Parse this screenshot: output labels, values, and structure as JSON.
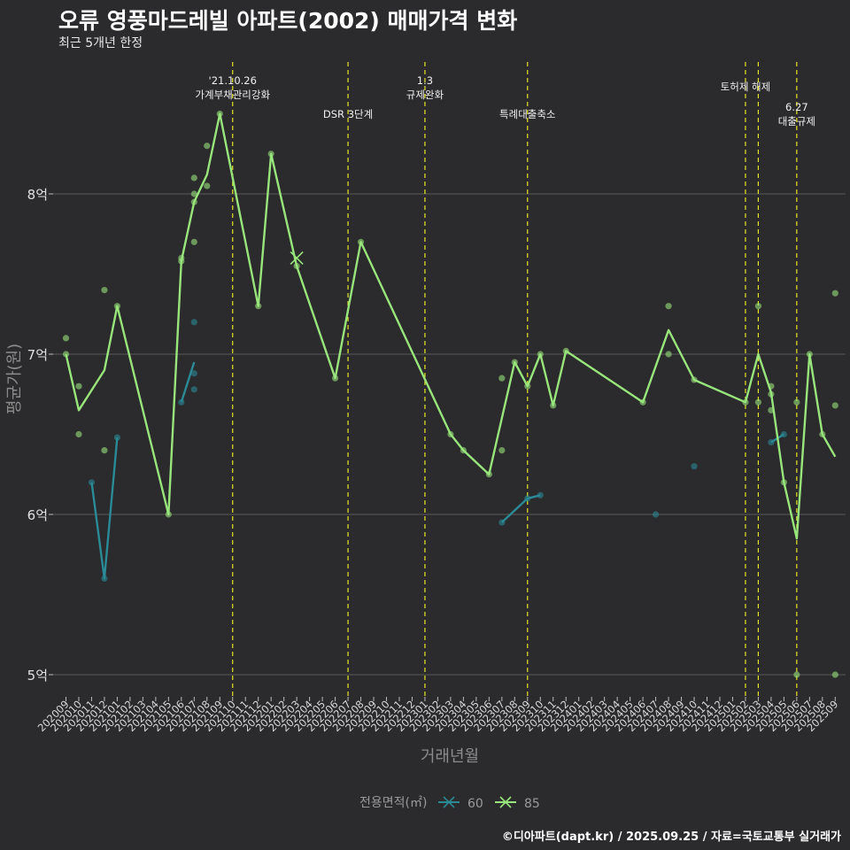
{
  "header": {
    "title": "오류 영풍마드레빌 아파트(2002) 매매가격 변화",
    "subtitle": "최근 5개년 한정"
  },
  "caption": "©디아파트(dapt.kr) / 2025.09.25 / 자료=국토교통부 실거래가",
  "colors": {
    "background": "#2b2a2c",
    "grid": "#6a6a6a",
    "series_60": "#2a8a96",
    "series_85": "#98e57c",
    "event_line": "#e6e627"
  },
  "chart_data": {
    "type": "line",
    "xlabel": "거래년월",
    "ylabel": "평균가(원)",
    "ylim": [
      4.85,
      8.95
    ],
    "yticks": [
      5,
      6,
      7,
      8
    ],
    "ytick_labels": [
      "5억",
      "6억",
      "7억",
      "8억"
    ],
    "categories": [
      "202009",
      "202010",
      "202011",
      "202012",
      "202101",
      "202102",
      "202103",
      "202104",
      "202105",
      "202106",
      "202107",
      "202108",
      "202109",
      "202110",
      "202111",
      "202112",
      "202201",
      "202202",
      "202203",
      "202204",
      "202205",
      "202206",
      "202207",
      "202208",
      "202209",
      "202210",
      "202211",
      "202212",
      "202301",
      "202302",
      "202303",
      "202304",
      "202305",
      "202306",
      "202307",
      "202308",
      "202309",
      "202310",
      "202311",
      "202312",
      "202401",
      "202402",
      "202403",
      "202404",
      "202405",
      "202406",
      "202407",
      "202408",
      "202409",
      "202410",
      "202411",
      "202412",
      "202501",
      "202502",
      "202503",
      "202504",
      "202505",
      "202506",
      "202507",
      "202508",
      "202509"
    ],
    "legend": {
      "title": "전용면적(㎡)",
      "entries": [
        "60",
        "85"
      ]
    },
    "series": [
      {
        "name": "60",
        "line": [
          {
            "x": "202011",
            "y": 6.2
          },
          {
            "x": "202012",
            "y": 5.6
          },
          {
            "x": "202101",
            "y": 6.48
          },
          {
            "x": "202106",
            "y": 6.7
          },
          {
            "x": "202107",
            "y": 6.95
          },
          {
            "x": "202307",
            "y": 5.95
          },
          {
            "x": "202309",
            "y": 6.1
          },
          {
            "x": "202310",
            "y": 6.12
          },
          {
            "x": "202504",
            "y": 6.45
          },
          {
            "x": "202505",
            "y": 6.5
          }
        ],
        "points": [
          {
            "x": "202011",
            "y": 6.2
          },
          {
            "x": "202012",
            "y": 5.6
          },
          {
            "x": "202101",
            "y": 6.48
          },
          {
            "x": "202106",
            "y": 6.7
          },
          {
            "x": "202107",
            "y": 7.2
          },
          {
            "x": "202107",
            "y": 6.88
          },
          {
            "x": "202107",
            "y": 6.78
          },
          {
            "x": "202307",
            "y": 5.95
          },
          {
            "x": "202309",
            "y": 6.1
          },
          {
            "x": "202310",
            "y": 6.12
          },
          {
            "x": "202407",
            "y": 6.0
          },
          {
            "x": "202410",
            "y": 6.3
          },
          {
            "x": "202504",
            "y": 6.45
          },
          {
            "x": "202505",
            "y": 6.5
          }
        ]
      },
      {
        "name": "85",
        "line": [
          {
            "x": "202009",
            "y": 7.0
          },
          {
            "x": "202010",
            "y": 6.65
          },
          {
            "x": "202012",
            "y": 6.9
          },
          {
            "x": "202101",
            "y": 7.3
          },
          {
            "x": "202105",
            "y": 6.0
          },
          {
            "x": "202106",
            "y": 7.58
          },
          {
            "x": "202107",
            "y": 7.95
          },
          {
            "x": "202108",
            "y": 8.12
          },
          {
            "x": "202109",
            "y": 8.5
          },
          {
            "x": "202112",
            "y": 7.3
          },
          {
            "x": "202201",
            "y": 8.25
          },
          {
            "x": "202203",
            "y": 7.55
          },
          {
            "x": "202206",
            "y": 6.85
          },
          {
            "x": "202208",
            "y": 7.7
          },
          {
            "x": "202303",
            "y": 6.5
          },
          {
            "x": "202304",
            "y": 6.4
          },
          {
            "x": "202306",
            "y": 6.25
          },
          {
            "x": "202308",
            "y": 6.95
          },
          {
            "x": "202309",
            "y": 6.8
          },
          {
            "x": "202310",
            "y": 7.0
          },
          {
            "x": "202311",
            "y": 6.68
          },
          {
            "x": "202312",
            "y": 7.02
          },
          {
            "x": "202406",
            "y": 6.7
          },
          {
            "x": "202408",
            "y": 7.15
          },
          {
            "x": "202410",
            "y": 6.84
          },
          {
            "x": "202502",
            "y": 6.7
          },
          {
            "x": "202503",
            "y": 7.0
          },
          {
            "x": "202504",
            "y": 6.76
          },
          {
            "x": "202505",
            "y": 6.2
          },
          {
            "x": "202506",
            "y": 5.85
          },
          {
            "x": "202507",
            "y": 7.0
          },
          {
            "x": "202508",
            "y": 6.5
          },
          {
            "x": "202509",
            "y": 6.36
          }
        ],
        "points": [
          {
            "x": "202009",
            "y": 7.1
          },
          {
            "x": "202009",
            "y": 7.0
          },
          {
            "x": "202010",
            "y": 6.8
          },
          {
            "x": "202010",
            "y": 6.5
          },
          {
            "x": "202012",
            "y": 7.4
          },
          {
            "x": "202012",
            "y": 6.4
          },
          {
            "x": "202101",
            "y": 7.3
          },
          {
            "x": "202105",
            "y": 6.0
          },
          {
            "x": "202106",
            "y": 7.6
          },
          {
            "x": "202106",
            "y": 7.58
          },
          {
            "x": "202107",
            "y": 8.1
          },
          {
            "x": "202107",
            "y": 8.0
          },
          {
            "x": "202107",
            "y": 7.95
          },
          {
            "x": "202107",
            "y": 7.7
          },
          {
            "x": "202108",
            "y": 8.3
          },
          {
            "x": "202108",
            "y": 8.05
          },
          {
            "x": "202109",
            "y": 8.5
          },
          {
            "x": "202112",
            "y": 7.3
          },
          {
            "x": "202201",
            "y": 8.25
          },
          {
            "x": "202203",
            "y": 7.55
          },
          {
            "x": "202206",
            "y": 6.85
          },
          {
            "x": "202208",
            "y": 7.7
          },
          {
            "x": "202303",
            "y": 6.5
          },
          {
            "x": "202304",
            "y": 6.4
          },
          {
            "x": "202306",
            "y": 6.25
          },
          {
            "x": "202307",
            "y": 6.85
          },
          {
            "x": "202307",
            "y": 6.4
          },
          {
            "x": "202308",
            "y": 6.95
          },
          {
            "x": "202309",
            "y": 6.8
          },
          {
            "x": "202310",
            "y": 7.0
          },
          {
            "x": "202311",
            "y": 6.68
          },
          {
            "x": "202312",
            "y": 7.02
          },
          {
            "x": "202406",
            "y": 6.7
          },
          {
            "x": "202408",
            "y": 7.3
          },
          {
            "x": "202408",
            "y": 7.0
          },
          {
            "x": "202410",
            "y": 6.84
          },
          {
            "x": "202502",
            "y": 6.7
          },
          {
            "x": "202503",
            "y": 7.3
          },
          {
            "x": "202503",
            "y": 6.7
          },
          {
            "x": "202504",
            "y": 6.8
          },
          {
            "x": "202504",
            "y": 6.75
          },
          {
            "x": "202504",
            "y": 6.65
          },
          {
            "x": "202505",
            "y": 6.2
          },
          {
            "x": "202506",
            "y": 6.7
          },
          {
            "x": "202506",
            "y": 5.0
          },
          {
            "x": "202507",
            "y": 7.0
          },
          {
            "x": "202508",
            "y": 6.5
          },
          {
            "x": "202509",
            "y": 7.38
          },
          {
            "x": "202509",
            "y": 6.68
          },
          {
            "x": "202509",
            "y": 5.0
          }
        ]
      }
    ],
    "highlight_marker": {
      "series": "85",
      "x": "202203",
      "y": 7.6
    },
    "events": [
      {
        "x": "202110",
        "lines": [
          "'21.10.26",
          "가계부채관리강화"
        ]
      },
      {
        "x": "202207",
        "lines": [
          "DSR 3단계"
        ]
      },
      {
        "x": "202301",
        "lines": [
          "1.3",
          "규제완화"
        ]
      },
      {
        "x": "202309",
        "lines": [
          "특례대출축소"
        ]
      },
      {
        "x": "202502",
        "lines": [
          "토허제 해제"
        ]
      },
      {
        "x": "202503",
        "lines": []
      },
      {
        "x": "202506",
        "lines": [
          "6.27",
          "대출규제"
        ]
      }
    ]
  }
}
